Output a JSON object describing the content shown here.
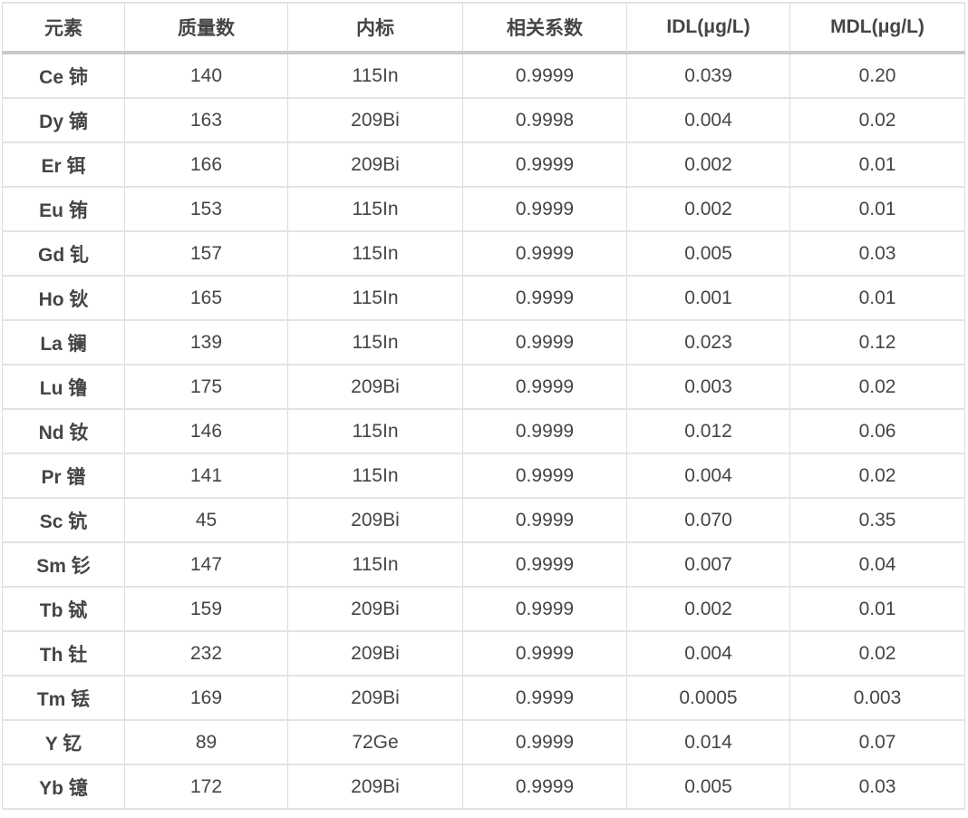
{
  "table": {
    "columns": [
      "元素",
      "质量数",
      "内标",
      "相关系数",
      "IDL(μg/L)",
      "MDL(μg/L)"
    ],
    "rows": [
      [
        "Ce 铈",
        "140",
        "115In",
        "0.9999",
        "0.039",
        "0.20"
      ],
      [
        "Dy 镝",
        "163",
        "209Bi",
        "0.9998",
        "0.004",
        "0.02"
      ],
      [
        "Er 铒",
        "166",
        "209Bi",
        "0.9999",
        "0.002",
        "0.01"
      ],
      [
        "Eu 铕",
        "153",
        "115In",
        "0.9999",
        "0.002",
        "0.01"
      ],
      [
        "Gd 钆",
        "157",
        "115In",
        "0.9999",
        "0.005",
        "0.03"
      ],
      [
        "Ho 钬",
        "165",
        "115In",
        "0.9999",
        "0.001",
        "0.01"
      ],
      [
        "La 镧",
        "139",
        "115In",
        "0.9999",
        "0.023",
        "0.12"
      ],
      [
        "Lu 镥",
        "175",
        "209Bi",
        "0.9999",
        "0.003",
        "0.02"
      ],
      [
        "Nd 钕",
        "146",
        "115In",
        "0.9999",
        "0.012",
        "0.06"
      ],
      [
        "Pr 镨",
        "141",
        "115In",
        "0.9999",
        "0.004",
        "0.02"
      ],
      [
        "Sc 钪",
        "45",
        "209Bi",
        "0.9999",
        "0.070",
        "0.35"
      ],
      [
        "Sm 钐",
        "147",
        "115In",
        "0.9999",
        "0.007",
        "0.04"
      ],
      [
        "Tb 铽",
        "159",
        "209Bi",
        "0.9999",
        "0.002",
        "0.01"
      ],
      [
        "Th 钍",
        "232",
        "209Bi",
        "0.9999",
        "0.004",
        "0.02"
      ],
      [
        "Tm 铥",
        "169",
        "209Bi",
        "0.9999",
        "0.0005",
        "0.003"
      ],
      [
        "Y 钇",
        "89",
        "72Ge",
        "0.9999",
        "0.014",
        "0.07"
      ],
      [
        "Yb 镱",
        "172",
        "209Bi",
        "0.9999",
        "0.005",
        "0.03"
      ]
    ],
    "column_semantic_names": [
      "element",
      "mass-number",
      "internal-standard",
      "correlation-coefficient",
      "idl",
      "mdl"
    ]
  },
  "colors": {
    "text": "#454545",
    "grid_vertical": "#dcdcdc",
    "grid_horizontal": "#e3e3e3",
    "header_separator": "#c9c9c9",
    "background": "#ffffff"
  }
}
